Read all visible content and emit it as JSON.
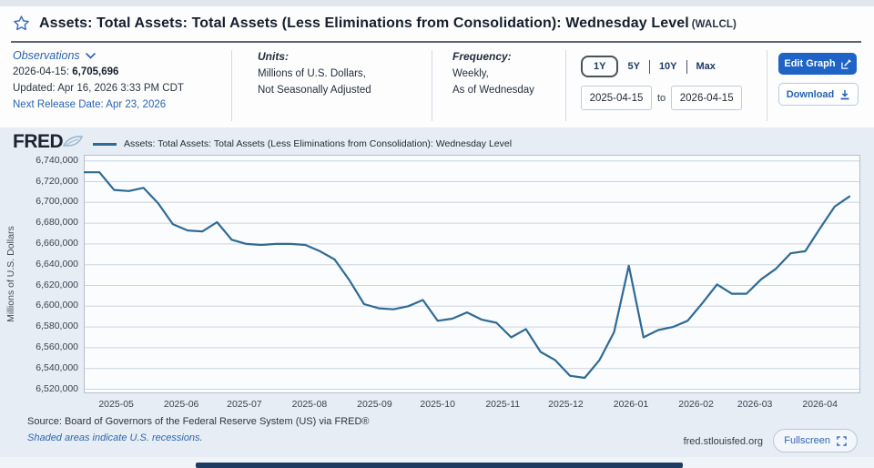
{
  "page": {
    "title": "Assets: Total Assets: Total Assets (Less Eliminations from Consolidation): Wednesday Level",
    "series_id": "(WALCL)"
  },
  "observations": {
    "label": "Observations",
    "latest_date": "2026-04-15:",
    "latest_value": "6,705,696",
    "updated": "Updated: Apr 16, 2026 3:33 PM CDT",
    "next_release": "Next Release Date: Apr 23, 2026"
  },
  "units": {
    "label": "Units:",
    "line1": "Millions of U.S. Dollars,",
    "line2": "Not Seasonally Adjusted"
  },
  "frequency": {
    "label": "Frequency:",
    "line1": "Weekly,",
    "line2": "As of Wednesday"
  },
  "range": {
    "options": [
      "1Y",
      "5Y",
      "10Y",
      "Max"
    ],
    "selected": "1Y",
    "start": "2025-04-15",
    "to_label": "to",
    "end": "2026-04-15"
  },
  "actions": {
    "edit_graph": "Edit Graph",
    "download": "Download"
  },
  "brand": {
    "logo": "FRED"
  },
  "footer": {
    "source": "Source: Board of Governors of the Federal Reserve System (US) via FRED®",
    "note": "Shaded areas indicate U.S. recessions.",
    "url": "fred.stlouisfed.org",
    "fullscreen": "Fullscreen"
  },
  "colors": {
    "accent_blue": "#1e63c5",
    "link_blue": "#2a62ae",
    "line_color": "#2f6a94",
    "gridline": "#c9d4e0",
    "plot_border": "#b2bfcd",
    "panel_bg": "#e7edf4",
    "plot_bg": "#fafcfe",
    "footer_bar": "#1c3c63"
  },
  "chart_data": {
    "type": "line",
    "title": "Assets: Total Assets: Total Assets (Less Eliminations from Consolidation): Wednesday Level",
    "series_name": "Assets: Total Assets: Total Assets (Less Eliminations from Consolidation): Wednesday Level",
    "xlabel": "",
    "ylabel": "Millions of U.S. Dollars",
    "ylim": [
      6520000,
      6740000
    ],
    "ytick_step": 20000,
    "grid": true,
    "legend_position": "top",
    "line_color": "#2f6a94",
    "x_ticks": [
      "2025-05",
      "2025-06",
      "2025-07",
      "2025-08",
      "2025-09",
      "2025-10",
      "2025-11",
      "2025-12",
      "2026-01",
      "2026-02",
      "2026-03",
      "2026-04"
    ],
    "dates": [
      "2025-04-16",
      "2025-04-23",
      "2025-04-30",
      "2025-05-07",
      "2025-05-14",
      "2025-05-21",
      "2025-05-28",
      "2025-06-04",
      "2025-06-11",
      "2025-06-18",
      "2025-06-25",
      "2025-07-02",
      "2025-07-09",
      "2025-07-16",
      "2025-07-23",
      "2025-07-30",
      "2025-08-06",
      "2025-08-13",
      "2025-08-20",
      "2025-08-27",
      "2025-09-03",
      "2025-09-10",
      "2025-09-17",
      "2025-09-24",
      "2025-10-01",
      "2025-10-08",
      "2025-10-15",
      "2025-10-22",
      "2025-10-29",
      "2025-11-05",
      "2025-11-12",
      "2025-11-19",
      "2025-11-26",
      "2025-12-03",
      "2025-12-10",
      "2025-12-17",
      "2025-12-24",
      "2025-12-31",
      "2026-01-07",
      "2026-01-14",
      "2026-01-21",
      "2026-01-28",
      "2026-02-04",
      "2026-02-11",
      "2026-02-18",
      "2026-02-25",
      "2026-03-04",
      "2026-03-11",
      "2026-03-18",
      "2026-03-25",
      "2026-04-01",
      "2026-04-08",
      "2026-04-15"
    ],
    "values": [
      6729000,
      6729000,
      6712000,
      6711000,
      6714000,
      6699000,
      6679000,
      6673000,
      6672000,
      6681000,
      6664000,
      6660000,
      6659000,
      6660000,
      6660000,
      6659000,
      6653000,
      6645000,
      6625000,
      6602000,
      6598000,
      6597000,
      6600000,
      6606000,
      6586000,
      6588000,
      6594000,
      6587000,
      6584000,
      6570000,
      6578000,
      6556000,
      6548000,
      6533000,
      6531000,
      6548000,
      6575000,
      6639000,
      6570000,
      6577000,
      6580000,
      6586000,
      6603000,
      6621000,
      6612000,
      6612000,
      6626000,
      6636000,
      6651000,
      6653000,
      6675000,
      6696000,
      6705696
    ]
  }
}
